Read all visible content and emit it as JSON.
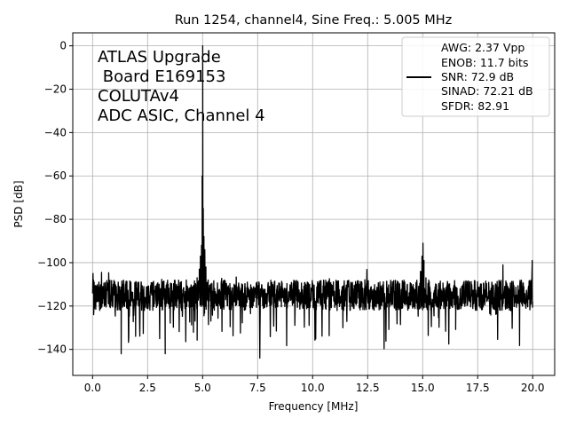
{
  "chart_data": {
    "type": "line",
    "title": "Run 1254, channel4, Sine Freq.: 5.005 MHz",
    "xlabel": "Frequency [MHz]",
    "ylabel": "PSD [dB]",
    "xlim": [
      -0.9,
      21.0
    ],
    "ylim": [
      -152,
      6
    ],
    "x_ticks": [
      0.0,
      2.5,
      5.0,
      7.5,
      10.0,
      12.5,
      15.0,
      17.5,
      20.0
    ],
    "x_tick_labels": [
      "0.0",
      "2.5",
      "5.0",
      "7.5",
      "10.0",
      "12.5",
      "15.0",
      "17.5",
      "20.0"
    ],
    "y_ticks": [
      0,
      -20,
      -40,
      -60,
      -80,
      -100,
      -120,
      -140
    ],
    "y_tick_labels": [
      "0",
      "−20",
      "−40",
      "−60",
      "−80",
      "−100",
      "−120",
      "−140"
    ],
    "grid": true,
    "line_color": "#000000",
    "noise_floor_db": -115,
    "series": [
      {
        "x": [
          0.0,
          0.02,
          0.05,
          0.1,
          0.2,
          0.4,
          0.8,
          1.3,
          2.0,
          2.7,
          3.3,
          4.0,
          4.5,
          4.75,
          4.85,
          4.9,
          4.95,
          4.98,
          5.005,
          5.03,
          5.06,
          5.1,
          5.15,
          5.25,
          5.5,
          6.0,
          7.0,
          7.6,
          8.5,
          10.0,
          11.5,
          13.0,
          14.5,
          14.9,
          14.97,
          15.015,
          15.06,
          15.15,
          15.5,
          16.5,
          18.0,
          19.5,
          19.95,
          19.98,
          20.0
        ],
        "y": [
          -114,
          -105,
          -124,
          -112,
          -118,
          -111,
          -119,
          -142,
          -116,
          -110,
          -142,
          -113,
          -119,
          -107,
          -103,
          -97,
          -92,
          -60,
          0,
          -75,
          -88,
          -94,
          -102,
          -108,
          -117,
          -112,
          -118,
          -144,
          -111,
          -117,
          -113,
          -119,
          -111,
          -104,
          -97,
          -91,
          -99,
          -107,
          -114,
          -117,
          -113,
          -119,
          -108,
          -99,
          -118
        ]
      }
    ],
    "annotation_lines": [
      "ATLAS Upgrade",
      " Board E169153",
      "COLUTAv4",
      "ADC ASIC, Channel 4"
    ],
    "legend": {
      "placement": "top-right",
      "entries": [
        "AWG: 2.37 Vpp",
        "ENOB: 11.7 bits",
        "SNR: 72.9 dB",
        "SINAD: 72.21 dB",
        "SFDR: 82.91"
      ]
    }
  }
}
